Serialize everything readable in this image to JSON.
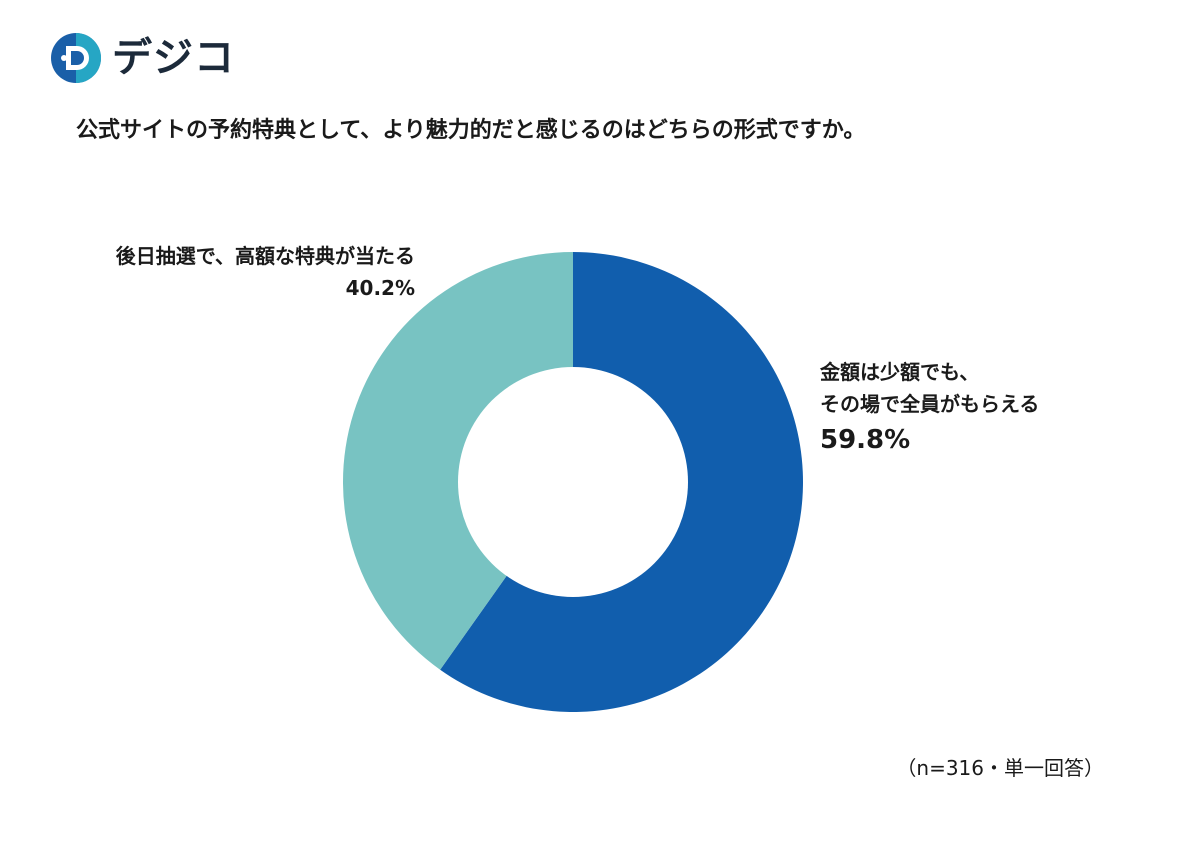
{
  "logo": {
    "text": "デジコ",
    "icon": "digico-logo-icon",
    "colors": {
      "primary": "#1a5fa8",
      "accent": "#29b3c9"
    }
  },
  "question": "公式サイトの予約特典として、より魅力的だと感じるのはどちらの形式ですか。",
  "note": "（n=316・単一回答）",
  "chart_data": {
    "type": "pie",
    "donut": true,
    "start_angle_deg": 0,
    "direction": "clockwise",
    "slices": [
      {
        "label_lines": [
          "金額は少額でも、",
          "その場で全員がもらえる"
        ],
        "value": 59.8,
        "value_label": "59.8%",
        "color": "#115ead"
      },
      {
        "label_lines": [
          "後日抽選で、高額な特典が当たる"
        ],
        "value": 40.2,
        "value_label": "40.2%",
        "color": "#78c3c2"
      }
    ]
  }
}
